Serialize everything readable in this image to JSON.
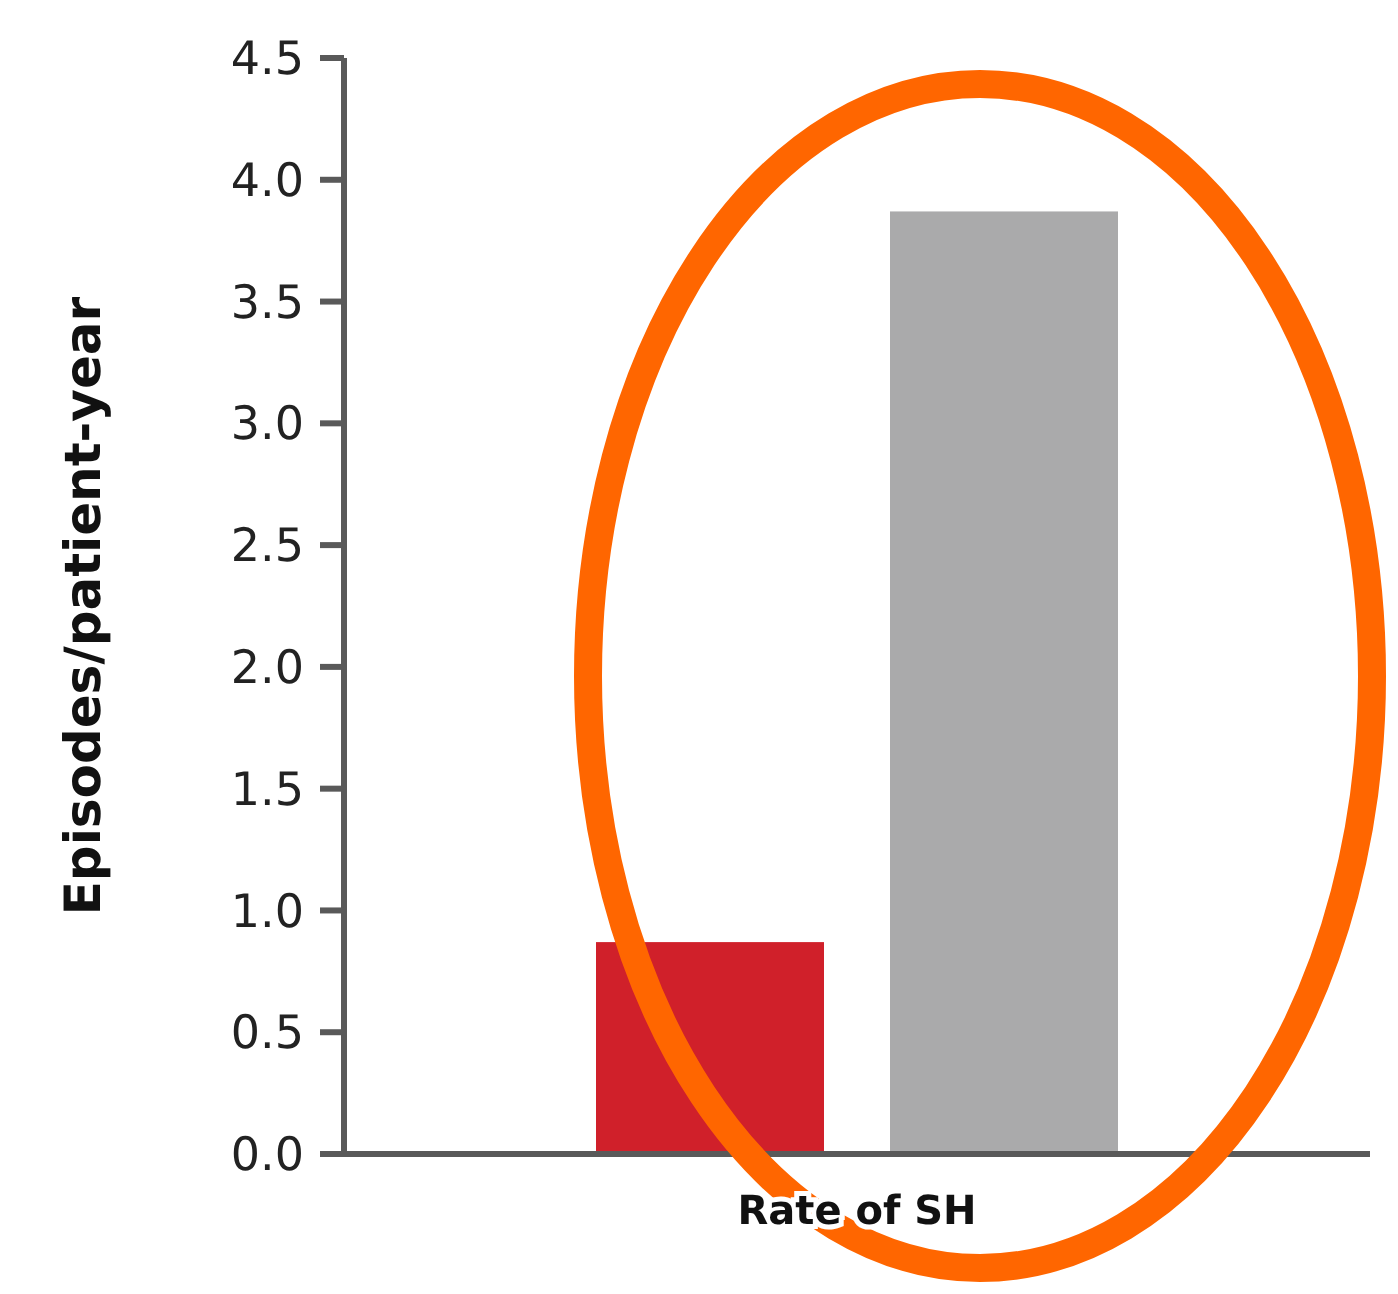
{
  "chart_data": {
    "type": "bar",
    "ylabel": "Episodes/patient-year",
    "categories": [
      "Rate of SH"
    ],
    "series": [
      {
        "color": "#d0202a",
        "values": [
          0.87
        ]
      },
      {
        "color": "#aaaaab",
        "values": [
          3.87
        ]
      }
    ],
    "ylim": [
      0,
      4.5
    ],
    "yticks": [
      {
        "value": 0,
        "label": "0.0"
      },
      {
        "value": 0.5,
        "label": "0.5"
      },
      {
        "value": 1,
        "label": "1.0"
      },
      {
        "value": 1.5,
        "label": "1.5"
      },
      {
        "value": 2,
        "label": "2.0"
      },
      {
        "value": 2.5,
        "label": "2.5"
      },
      {
        "value": 3,
        "label": "3.0"
      },
      {
        "value": 3.5,
        "label": "3.5"
      },
      {
        "value": 4,
        "label": "4.0"
      },
      {
        "value": 4.5,
        "label": "4.5"
      }
    ],
    "grid": false
  }
}
